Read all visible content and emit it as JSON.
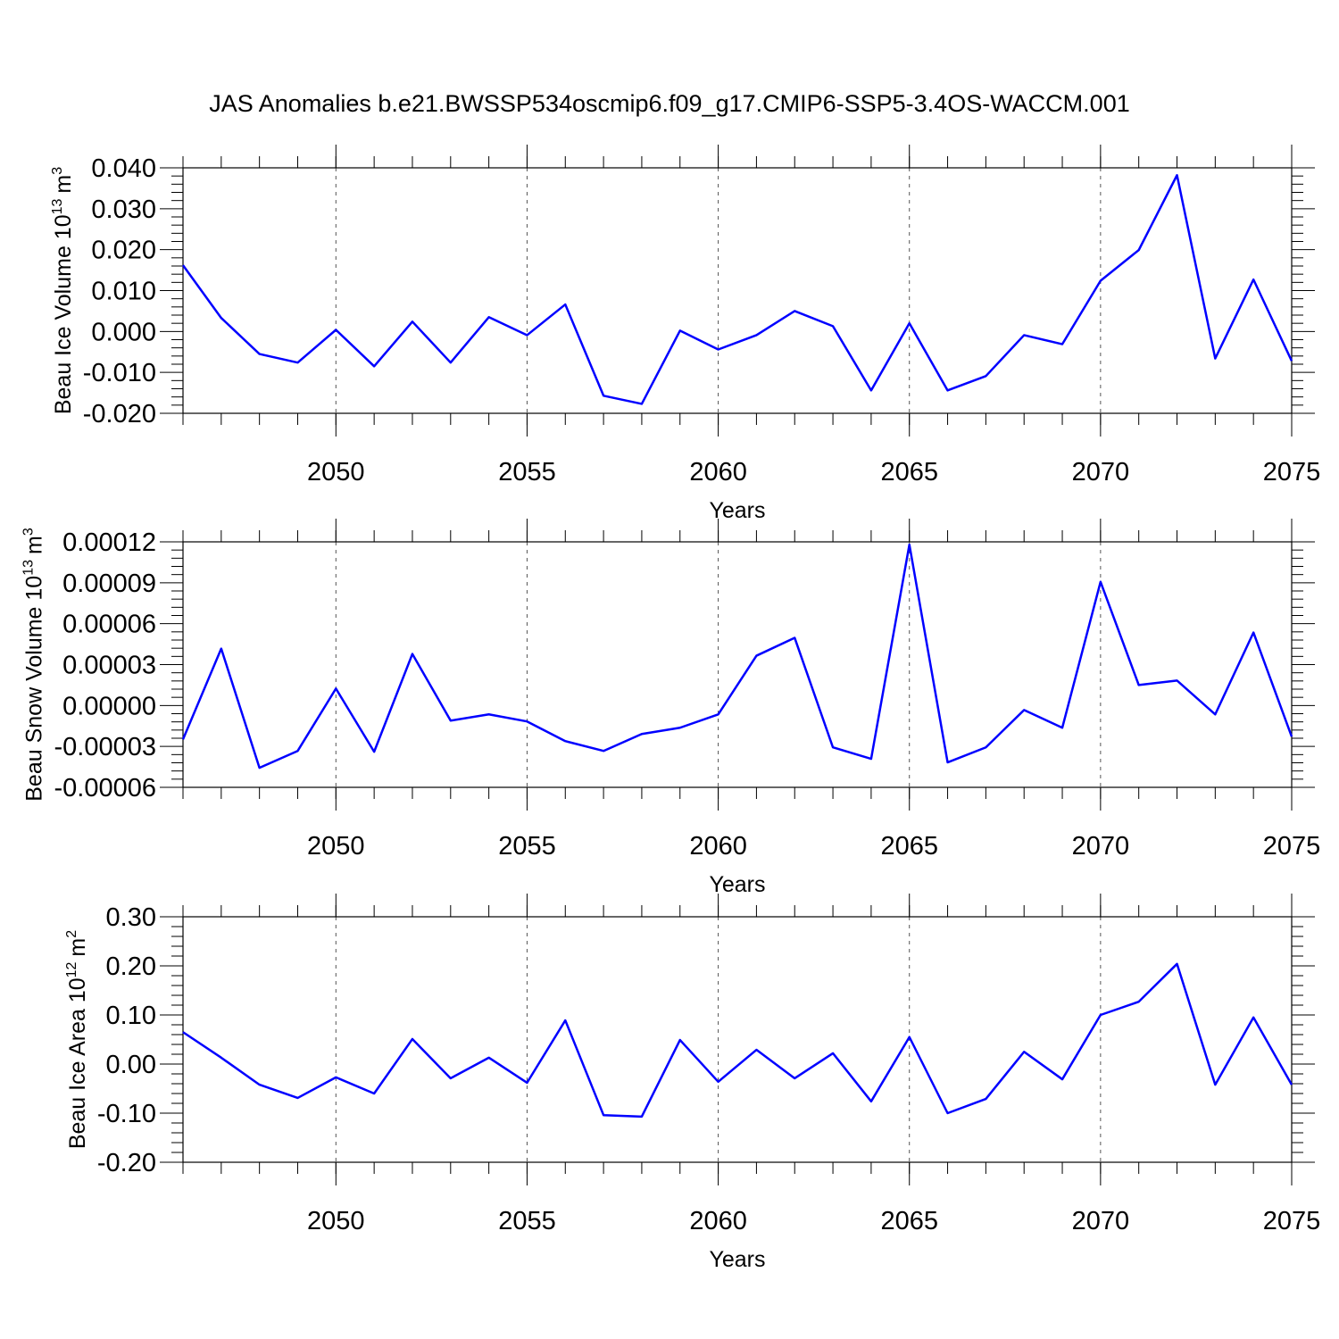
{
  "title": "JAS Anomalies b.e21.BWSSP534oscmip6.f09_g17.CMIP6-SSP5-3.4OS-WACCM.001",
  "chart_data": [
    {
      "type": "line",
      "x": [
        2046,
        2047,
        2048,
        2049,
        2050,
        2051,
        2052,
        2053,
        2054,
        2055,
        2056,
        2057,
        2058,
        2059,
        2060,
        2061,
        2062,
        2063,
        2064,
        2065,
        2066,
        2067,
        2068,
        2069,
        2070,
        2071,
        2072,
        2073,
        2074,
        2075
      ],
      "series": [
        {
          "color": "#0000ff",
          "values": [
            0.0162,
            0.0033,
            -0.0055,
            -0.0076,
            0.0004,
            -0.0085,
            0.0024,
            -0.0076,
            0.0035,
            -0.0009,
            0.0066,
            -0.0157,
            -0.0177,
            0.0002,
            -0.0044,
            -0.0009,
            0.005,
            0.0013,
            -0.0144,
            0.002,
            -0.0144,
            -0.0109,
            -0.0009,
            -0.0031,
            0.0124,
            0.0199,
            0.0382,
            -0.0066,
            0.0127,
            -0.0072
          ]
        }
      ],
      "xlim": [
        2046,
        2075
      ],
      "xticks": [
        2050,
        2055,
        2060,
        2065,
        2070,
        2075
      ],
      "ylim": [
        -0.02,
        0.04
      ],
      "yticks": [
        {
          "value": -0.02,
          "label": "-0.020"
        },
        {
          "value": -0.01,
          "label": "-0.010"
        },
        {
          "value": 0,
          "label": "0.000"
        },
        {
          "value": 0.01,
          "label": "0.010"
        },
        {
          "value": 0.02,
          "label": "0.020"
        },
        {
          "value": 0.03,
          "label": "0.030"
        },
        {
          "value": 0.04,
          "label": "0.040"
        }
      ],
      "xlabel": "Years",
      "ylabel": "Beau Ice Volume 10",
      "ylabel_exp": "13",
      "ylabel_unit": "m",
      "ylabel_unit_exp": "3",
      "grid": "x"
    },
    {
      "type": "line",
      "x": [
        2046,
        2047,
        2048,
        2049,
        2050,
        2051,
        2052,
        2053,
        2054,
        2055,
        2056,
        2057,
        2058,
        2059,
        2060,
        2061,
        2062,
        2063,
        2064,
        2065,
        2066,
        2067,
        2068,
        2069,
        2070,
        2071,
        2072,
        2073,
        2074,
        2075
      ],
      "series": [
        {
          "color": "#0000ff",
          "values": [
            -2.48e-05,
            4.17e-05,
            -4.57e-05,
            -3.33e-05,
            1.24e-05,
            -3.39e-05,
            3.78e-05,
            -1.11e-05,
            -6.5e-06,
            -1.17e-05,
            -2.61e-05,
            -3.33e-05,
            -2.09e-05,
            -1.63e-05,
            -6.5e-06,
            3.65e-05,
            4.96e-05,
            -3.07e-05,
            -3.91e-05,
            0.000118,
            -4.17e-05,
            -3.07e-05,
            -3.3e-06,
            -1.63e-05,
            9.07e-05,
            1.5e-05,
            1.83e-05,
            -6.5e-06,
            5.35e-05,
            -2.28e-05
          ]
        }
      ],
      "xlim": [
        2046,
        2075
      ],
      "xticks": [
        2050,
        2055,
        2060,
        2065,
        2070,
        2075
      ],
      "ylim": [
        -6e-05,
        0.00012
      ],
      "yticks": [
        {
          "value": -6e-05,
          "label": "-0.00006"
        },
        {
          "value": -3e-05,
          "label": "-0.00003"
        },
        {
          "value": 0,
          "label": "0.00000"
        },
        {
          "value": 3e-05,
          "label": "0.00003"
        },
        {
          "value": 6e-05,
          "label": "0.00006"
        },
        {
          "value": 9e-05,
          "label": "0.00009"
        },
        {
          "value": 0.00012,
          "label": "0.00012"
        }
      ],
      "xlabel": "Years",
      "ylabel": "Beau Snow Volume 10",
      "ylabel_exp": "13",
      "ylabel_unit": "m",
      "ylabel_unit_exp": "3",
      "grid": "x"
    },
    {
      "type": "line",
      "x": [
        2046,
        2047,
        2048,
        2049,
        2050,
        2051,
        2052,
        2053,
        2054,
        2055,
        2056,
        2057,
        2058,
        2059,
        2060,
        2061,
        2062,
        2063,
        2064,
        2065,
        2066,
        2067,
        2068,
        2069,
        2070,
        2071,
        2072,
        2073,
        2074,
        2075
      ],
      "series": [
        {
          "color": "#0000ff",
          "values": [
            0.065,
            0.013,
            -0.042,
            -0.069,
            -0.027,
            -0.06,
            0.051,
            -0.029,
            0.013,
            -0.038,
            0.089,
            -0.104,
            -0.107,
            0.049,
            -0.036,
            0.029,
            -0.029,
            0.022,
            -0.076,
            0.055,
            -0.1,
            -0.071,
            0.025,
            -0.031,
            0.1,
            0.127,
            0.204,
            -0.042,
            0.095,
            -0.042
          ]
        }
      ],
      "xlim": [
        2046,
        2075
      ],
      "xticks": [
        2050,
        2055,
        2060,
        2065,
        2070,
        2075
      ],
      "ylim": [
        -0.2,
        0.3
      ],
      "yticks": [
        {
          "value": -0.2,
          "label": "-0.20"
        },
        {
          "value": -0.1,
          "label": "-0.10"
        },
        {
          "value": 0,
          "label": "0.00"
        },
        {
          "value": 0.1,
          "label": "0.10"
        },
        {
          "value": 0.2,
          "label": "0.20"
        },
        {
          "value": 0.3,
          "label": "0.30"
        }
      ],
      "xlabel": "Years",
      "ylabel": "Beau Ice Area 10",
      "ylabel_exp": "12",
      "ylabel_unit": "m",
      "ylabel_unit_exp": "2",
      "grid": "x"
    }
  ]
}
